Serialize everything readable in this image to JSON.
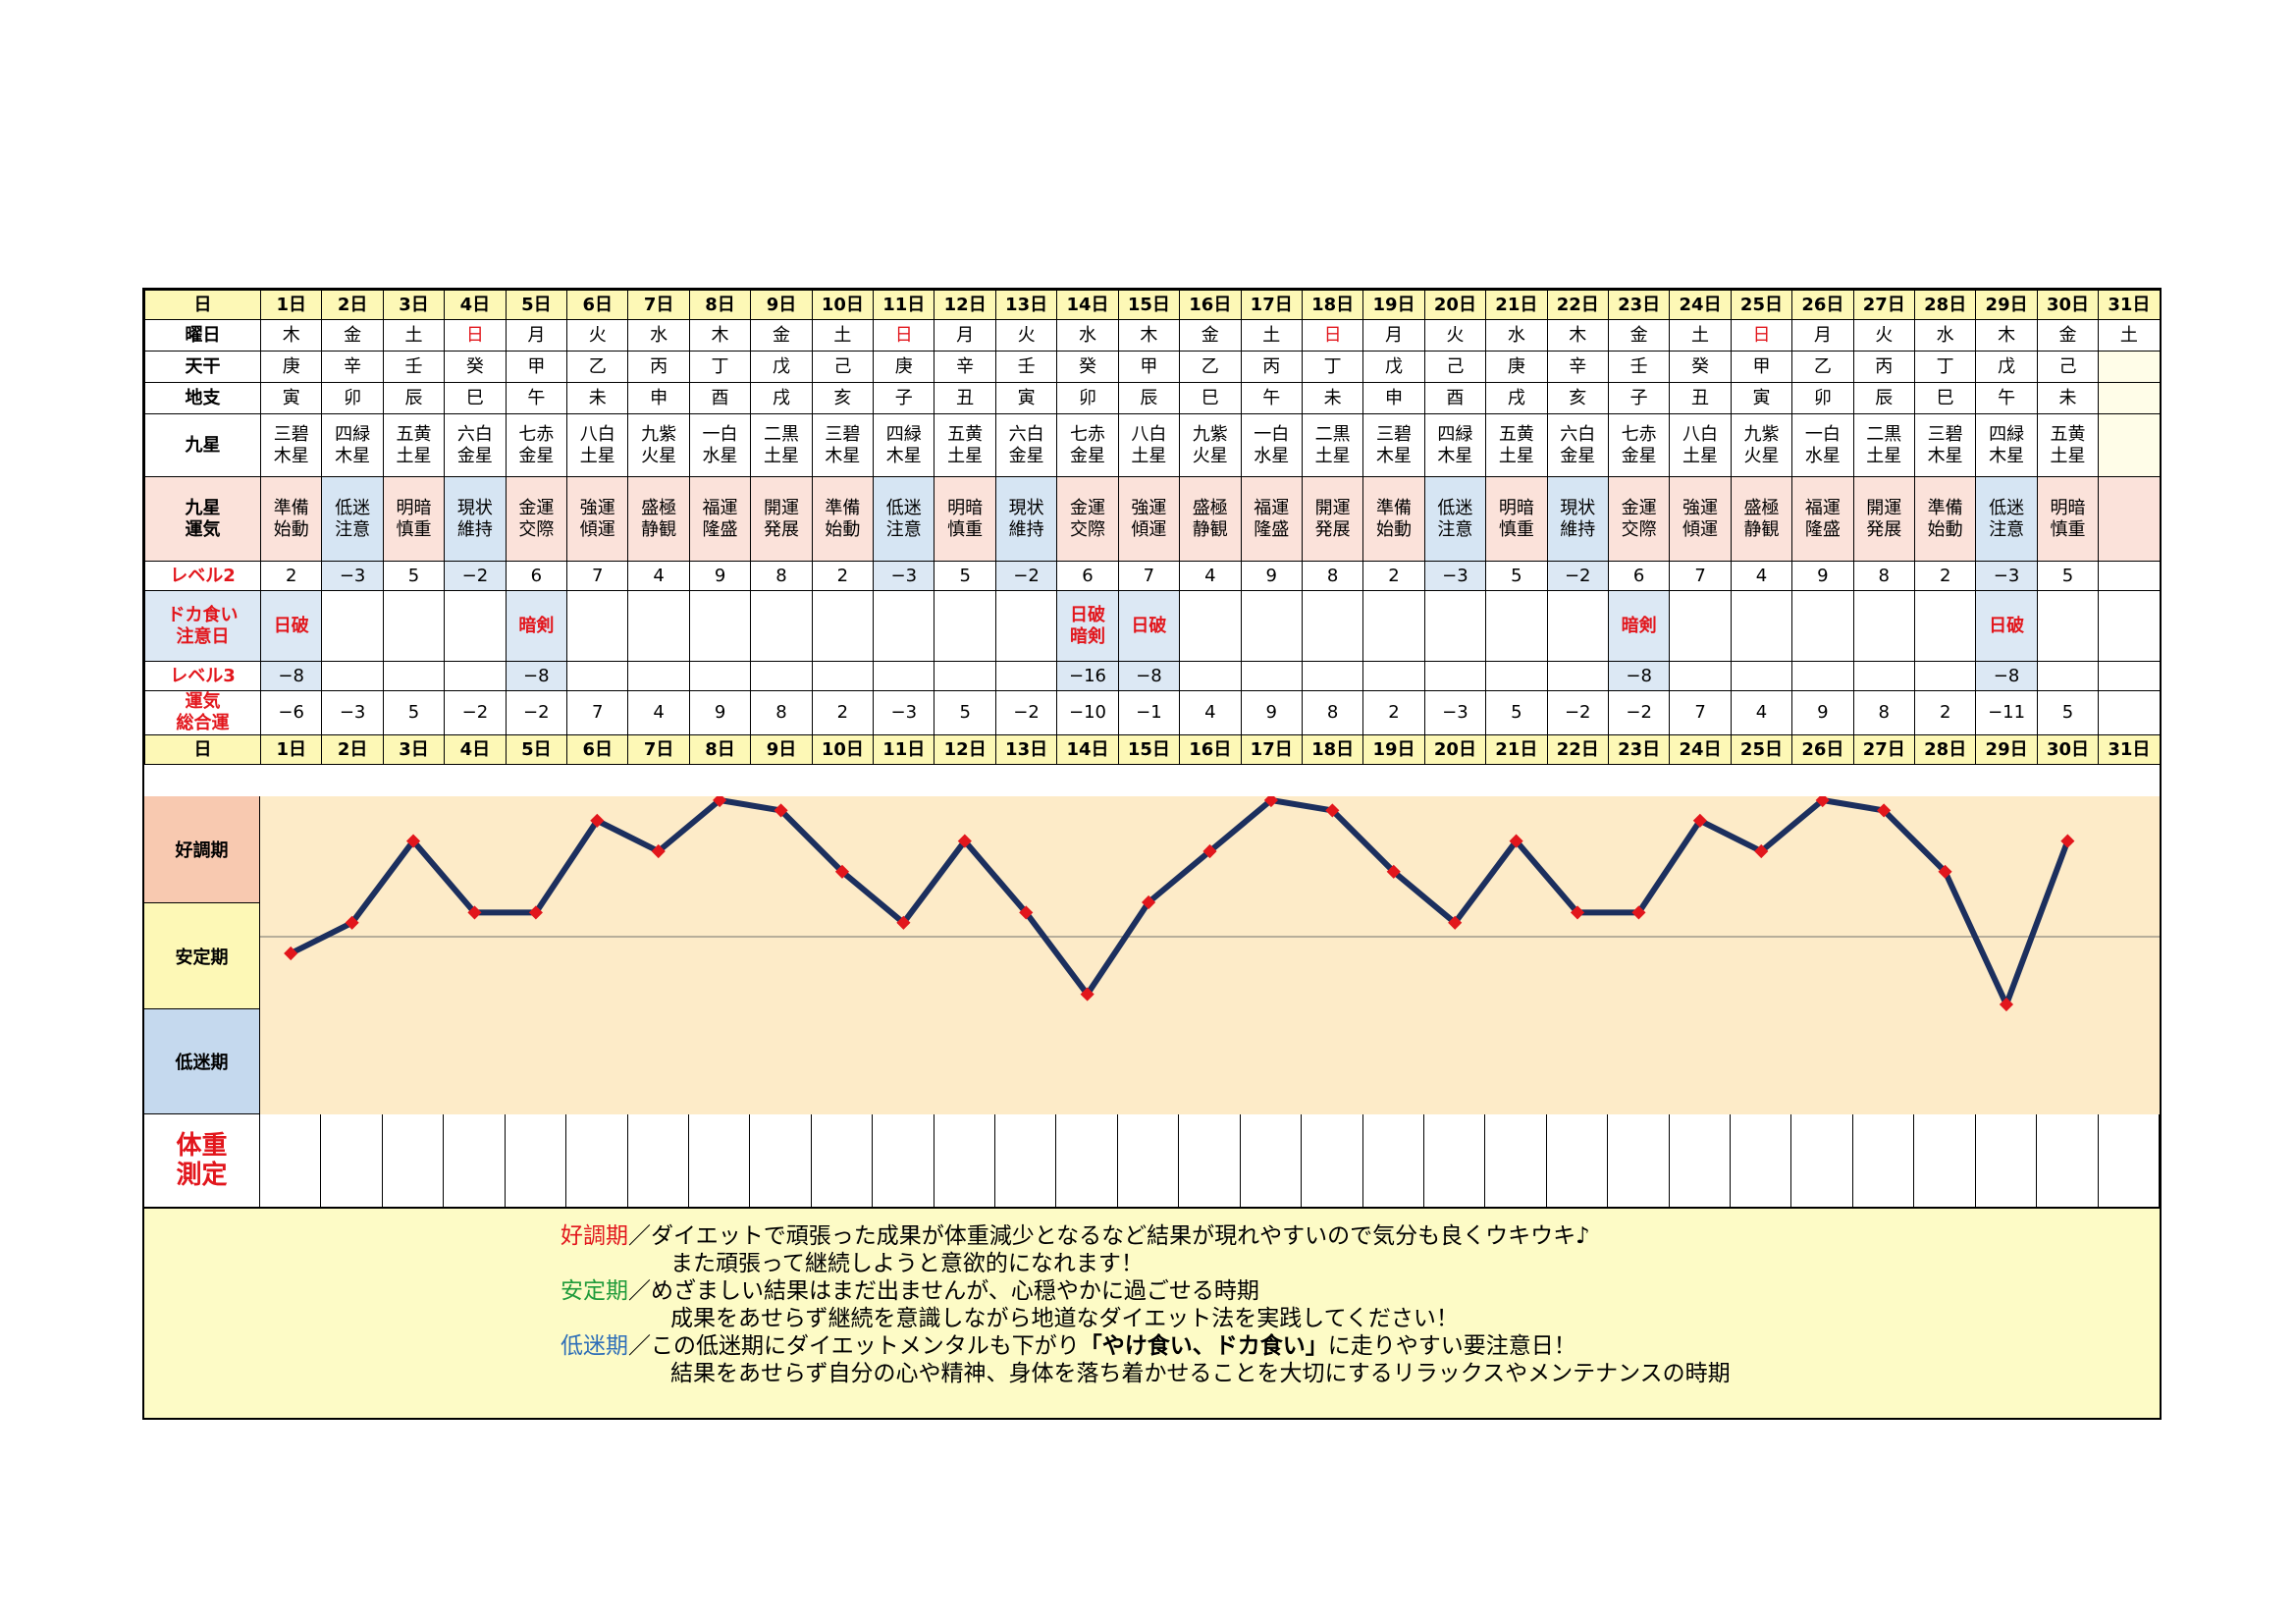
{
  "labels": {
    "day": "日",
    "weekday": "曜日",
    "tenkan": "天干",
    "chishi": "地支",
    "kyusei": "九星",
    "kyusei_unki": "九星\n運気",
    "level2": "レベル2",
    "dokagui": "ドカ食い\n注意日",
    "level3": "レベル3",
    "sogo": "運気\n総合運",
    "weight": "体重\n測定"
  },
  "days": [
    "1日",
    "2日",
    "3日",
    "4日",
    "5日",
    "6日",
    "7日",
    "8日",
    "9日",
    "10日",
    "11日",
    "12日",
    "13日",
    "14日",
    "15日",
    "16日",
    "17日",
    "18日",
    "19日",
    "20日",
    "21日",
    "22日",
    "23日",
    "24日",
    "25日",
    "26日",
    "27日",
    "28日",
    "29日",
    "30日",
    "31日"
  ],
  "weekdays": [
    "木",
    "金",
    "土",
    "日",
    "月",
    "火",
    "水",
    "木",
    "金",
    "土",
    "日",
    "月",
    "火",
    "水",
    "木",
    "金",
    "土",
    "日",
    "月",
    "火",
    "水",
    "木",
    "金",
    "土",
    "日",
    "月",
    "火",
    "水",
    "木",
    "金",
    "土"
  ],
  "tenkan": [
    "庚",
    "辛",
    "壬",
    "癸",
    "甲",
    "乙",
    "丙",
    "丁",
    "戊",
    "己",
    "庚",
    "辛",
    "壬",
    "癸",
    "甲",
    "乙",
    "丙",
    "丁",
    "戊",
    "己",
    "庚",
    "辛",
    "壬",
    "癸",
    "甲",
    "乙",
    "丙",
    "丁",
    "戊",
    "己",
    ""
  ],
  "chishi": [
    "寅",
    "卯",
    "辰",
    "巳",
    "午",
    "未",
    "申",
    "酉",
    "戌",
    "亥",
    "子",
    "丑",
    "寅",
    "卯",
    "辰",
    "巳",
    "午",
    "未",
    "申",
    "酉",
    "戌",
    "亥",
    "子",
    "丑",
    "寅",
    "卯",
    "辰",
    "巳",
    "午",
    "未",
    ""
  ],
  "kyusei": [
    "三碧\n木星",
    "四緑\n木星",
    "五黄\n土星",
    "六白\n金星",
    "七赤\n金星",
    "八白\n土星",
    "九紫\n火星",
    "一白\n水星",
    "二黒\n土星",
    "三碧\n木星",
    "四緑\n木星",
    "五黄\n土星",
    "六白\n金星",
    "七赤\n金星",
    "八白\n土星",
    "九紫\n火星",
    "一白\n水星",
    "二黒\n土星",
    "三碧\n木星",
    "四緑\n木星",
    "五黄\n土星",
    "六白\n金星",
    "七赤\n金星",
    "八白\n土星",
    "九紫\n火星",
    "一白\n水星",
    "二黒\n土星",
    "三碧\n木星",
    "四緑\n木星",
    "五黄\n土星",
    ""
  ],
  "unki": [
    "準備\n始動",
    "低迷\n注意",
    "明暗\n慎重",
    "現状\n維持",
    "金運\n交際",
    "強運\n傾運",
    "盛極\n静観",
    "福運\n隆盛",
    "開運\n発展",
    "準備\n始動",
    "低迷\n注意",
    "明暗\n慎重",
    "現状\n維持",
    "金運\n交際",
    "強運\n傾運",
    "盛極\n静観",
    "福運\n隆盛",
    "開運\n発展",
    "準備\n始動",
    "低迷\n注意",
    "明暗\n慎重",
    "現状\n維持",
    "金運\n交際",
    "強運\n傾運",
    "盛極\n静観",
    "福運\n隆盛",
    "開運\n発展",
    "準備\n始動",
    "低迷\n注意",
    "明暗\n慎重",
    ""
  ],
  "level2": [
    "2",
    "−3",
    "5",
    "−2",
    "6",
    "7",
    "4",
    "9",
    "8",
    "2",
    "−3",
    "5",
    "−2",
    "6",
    "7",
    "4",
    "9",
    "8",
    "2",
    "−3",
    "5",
    "−2",
    "6",
    "7",
    "4",
    "9",
    "8",
    "2",
    "−3",
    "5",
    ""
  ],
  "dokagui": [
    "日破",
    "",
    "",
    "",
    "暗剣",
    "",
    "",
    "",
    "",
    "",
    "",
    "",
    "",
    "日破\n暗剣",
    "日破",
    "",
    "",
    "",
    "",
    "",
    "",
    "",
    "暗剣",
    "",
    "",
    "",
    "",
    "",
    "日破",
    "",
    ""
  ],
  "level3": [
    "−8",
    "",
    "",
    "",
    "−8",
    "",
    "",
    "",
    "",
    "",
    "",
    "",
    "",
    "−16",
    "−8",
    "",
    "",
    "",
    "",
    "",
    "",
    "",
    "−8",
    "",
    "",
    "",
    "",
    "",
    "−8",
    "",
    ""
  ],
  "bands": {
    "good": "好調期",
    "stable": "安定期",
    "low": "低迷期"
  },
  "colors": {
    "line": "#1c2f5e",
    "marker": "#e2161c",
    "good_band": "#f8c9b0",
    "stable_band": "#fdf8b6",
    "low_band": "#c5d9ee",
    "plot_bg": "#fdebc8"
  },
  "chart_data": {
    "type": "line",
    "title": "",
    "xlabel": "",
    "ylabel": "",
    "categories": [
      "1日",
      "2日",
      "3日",
      "4日",
      "5日",
      "6日",
      "7日",
      "8日",
      "9日",
      "10日",
      "11日",
      "12日",
      "13日",
      "14日",
      "15日",
      "16日",
      "17日",
      "18日",
      "19日",
      "20日",
      "21日",
      "22日",
      "23日",
      "24日",
      "25日",
      "26日",
      "27日",
      "28日",
      "29日",
      "30日",
      "31日"
    ],
    "series": [
      {
        "values": [
          -6,
          -3,
          5,
          -2,
          -2,
          7,
          4,
          9,
          8,
          2,
          -3,
          5,
          -2,
          -10,
          -1,
          4,
          9,
          8,
          2,
          -3,
          5,
          -2,
          -2,
          7,
          4,
          9,
          8,
          2,
          -11,
          5,
          null
        ]
      }
    ],
    "ylim": [
      -11,
      9
    ],
    "grid": false
  },
  "legend": {
    "good_key": "好調期",
    "good_text1": "／ダイエットで頑張った成果が体重減少となるなど結果が現れやすいので気分も良くウキウキ♪",
    "good_text2": "また頑張って継続しようと意欲的になれます！",
    "stable_key": "安定期",
    "stable_text1": "／めざましい結果はまだ出ませんが、心穏やかに過ごせる時期",
    "stable_text2": "成果をあせらず継続を意識しながら地道なダイエット法を実践してください！",
    "low_key": "低迷期",
    "low_text1a": "／この低迷期にダイエットメンタルも下がり",
    "low_text1b": "「やけ食い、ドカ食い」",
    "low_text1c": "に走りやすい要注意日！",
    "low_text2": "結果をあせらず自分の心や精神、身体を落ち着かせることを大切にするリラックスやメンテナンスの時期"
  }
}
